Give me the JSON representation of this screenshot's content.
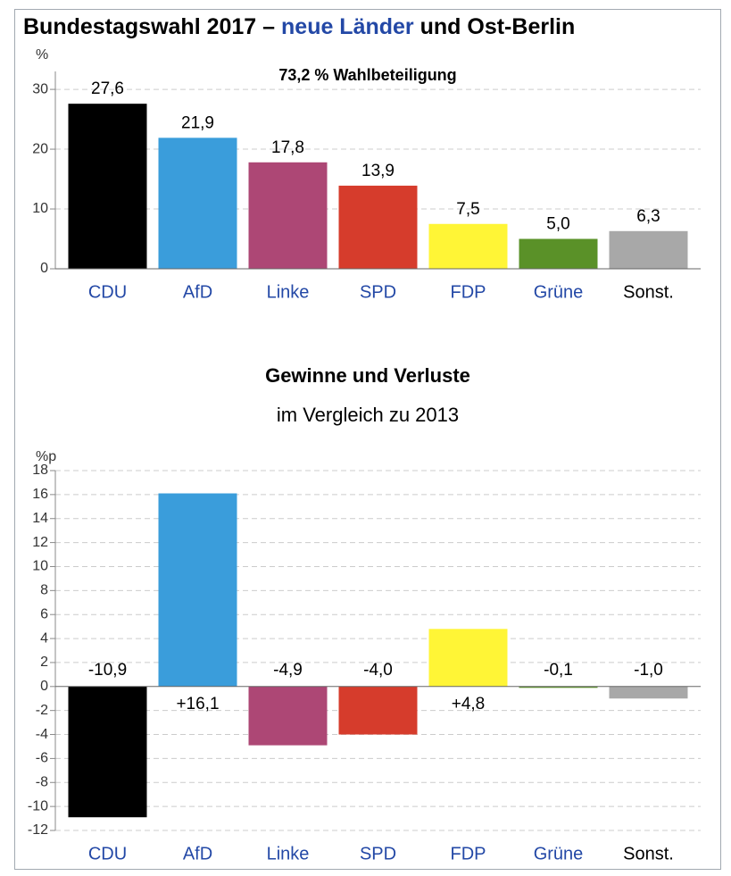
{
  "title": {
    "before": "Bundestagswahl 2017 –",
    "link": "neue Länder",
    "after": "und Ost-Berlin"
  },
  "chart_data": [
    {
      "type": "bar",
      "y_label": "%",
      "subtitle": "73,2 % Wahlbeteiligung",
      "categories": [
        "CDU",
        "AfD",
        "Linke",
        "SPD",
        "FDP",
        "Grüne",
        "Sonst."
      ],
      "category_colors": [
        "#2348a6",
        "#2348a6",
        "#2348a6",
        "#2348a6",
        "#2348a6",
        "#2348a6",
        "#000000"
      ],
      "values": [
        27.6,
        21.9,
        17.8,
        13.9,
        7.5,
        5.0,
        6.3
      ],
      "value_labels": [
        "27,6",
        "21,9",
        "17,8",
        "13,9",
        "7,5",
        "5,0",
        "6,3"
      ],
      "colors": [
        "#000000",
        "#3a9ddb",
        "#ad4775",
        "#d63c2c",
        "#fff536",
        "#5a9128",
        "#a8a8a8"
      ],
      "ylim": [
        0,
        33
      ],
      "yticks": [
        0,
        10,
        20,
        30
      ],
      "grid": true
    },
    {
      "type": "bar",
      "y_label": "%p",
      "title": "Gewinne und Verluste",
      "subtitle": "im Vergleich zu 2013",
      "categories": [
        "CDU",
        "AfD",
        "Linke",
        "SPD",
        "FDP",
        "Grüne",
        "Sonst."
      ],
      "category_colors": [
        "#2348a6",
        "#2348a6",
        "#2348a6",
        "#2348a6",
        "#2348a6",
        "#2348a6",
        "#000000"
      ],
      "values": [
        -10.9,
        16.1,
        -4.9,
        -4.0,
        4.8,
        -0.1,
        -1.0
      ],
      "value_labels": [
        "-10,9",
        "+16,1",
        "-4,9",
        "-4,0",
        "+4,8",
        "-0,1",
        "-1,0"
      ],
      "colors": [
        "#000000",
        "#3a9ddb",
        "#ad4775",
        "#d63c2c",
        "#fff536",
        "#5a9128",
        "#a8a8a8"
      ],
      "ylim": [
        -12,
        18
      ],
      "yticks": [
        -12,
        -10,
        -8,
        -6,
        -4,
        -2,
        0,
        2,
        4,
        6,
        8,
        10,
        12,
        14,
        16,
        18
      ],
      "grid": true
    }
  ]
}
